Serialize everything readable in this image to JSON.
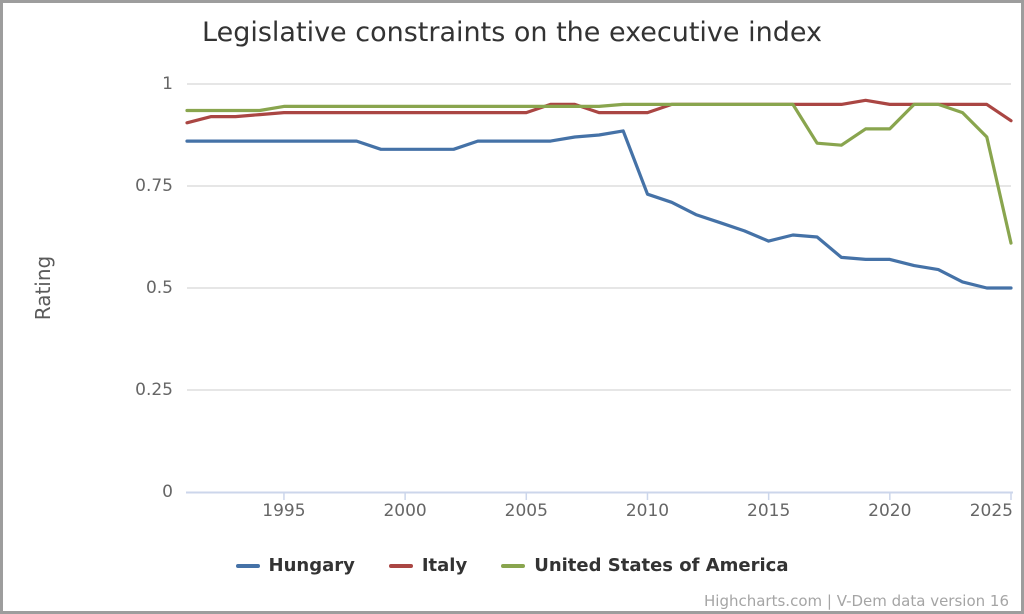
{
  "title": "Legislative constraints on the executive index",
  "y_axis_title": "Rating",
  "credits": "Highcharts.com | V-Dem data version 16",
  "chart_data": {
    "type": "line",
    "title": "Legislative constraints on the executive index",
    "xlabel": "",
    "ylabel": "Rating",
    "xlim": [
      1991,
      2025
    ],
    "ylim": [
      0,
      1
    ],
    "grid": "horizontal",
    "legend_position": "bottom",
    "xticks": [
      1995,
      2000,
      2005,
      2010,
      2015,
      2020,
      2025
    ],
    "yticks": [
      0,
      0.25,
      0.5,
      0.75,
      1
    ],
    "ytick_labels": [
      "0",
      "0.25",
      "0.5",
      "0.75",
      "1"
    ],
    "x": [
      1991,
      1992,
      1993,
      1994,
      1995,
      1996,
      1997,
      1998,
      1999,
      2000,
      2001,
      2002,
      2003,
      2004,
      2005,
      2006,
      2007,
      2008,
      2009,
      2010,
      2011,
      2012,
      2013,
      2014,
      2015,
      2016,
      2017,
      2018,
      2019,
      2020,
      2021,
      2022,
      2023,
      2024,
      2025
    ],
    "series": [
      {
        "name": "Hungary",
        "color": "#4572A7",
        "values": [
          0.86,
          0.86,
          0.86,
          0.86,
          0.86,
          0.86,
          0.86,
          0.86,
          0.84,
          0.84,
          0.84,
          0.84,
          0.86,
          0.86,
          0.86,
          0.86,
          0.87,
          0.875,
          0.885,
          0.73,
          0.71,
          0.68,
          0.66,
          0.64,
          0.615,
          0.63,
          0.625,
          0.575,
          0.57,
          0.57,
          0.555,
          0.545,
          0.515,
          0.5,
          0.5
        ]
      },
      {
        "name": "Italy",
        "color": "#AA4643",
        "values": [
          0.905,
          0.92,
          0.92,
          0.925,
          0.93,
          0.93,
          0.93,
          0.93,
          0.93,
          0.93,
          0.93,
          0.93,
          0.93,
          0.93,
          0.93,
          0.95,
          0.95,
          0.93,
          0.93,
          0.93,
          0.95,
          0.95,
          0.95,
          0.95,
          0.95,
          0.95,
          0.95,
          0.95,
          0.96,
          0.95,
          0.95,
          0.95,
          0.95,
          0.95,
          0.91
        ]
      },
      {
        "name": "United States of America",
        "color": "#89A54E",
        "values": [
          0.935,
          0.935,
          0.935,
          0.935,
          0.945,
          0.945,
          0.945,
          0.945,
          0.945,
          0.945,
          0.945,
          0.945,
          0.945,
          0.945,
          0.945,
          0.945,
          0.945,
          0.945,
          0.95,
          0.95,
          0.95,
          0.95,
          0.95,
          0.95,
          0.95,
          0.95,
          0.855,
          0.85,
          0.89,
          0.89,
          0.95,
          0.95,
          0.93,
          0.87,
          0.61
        ]
      }
    ]
  },
  "axis_style": {
    "grid_color": "#e6e6e6",
    "axis_line_color": "#ccd6eb",
    "label_color": "#666666"
  }
}
